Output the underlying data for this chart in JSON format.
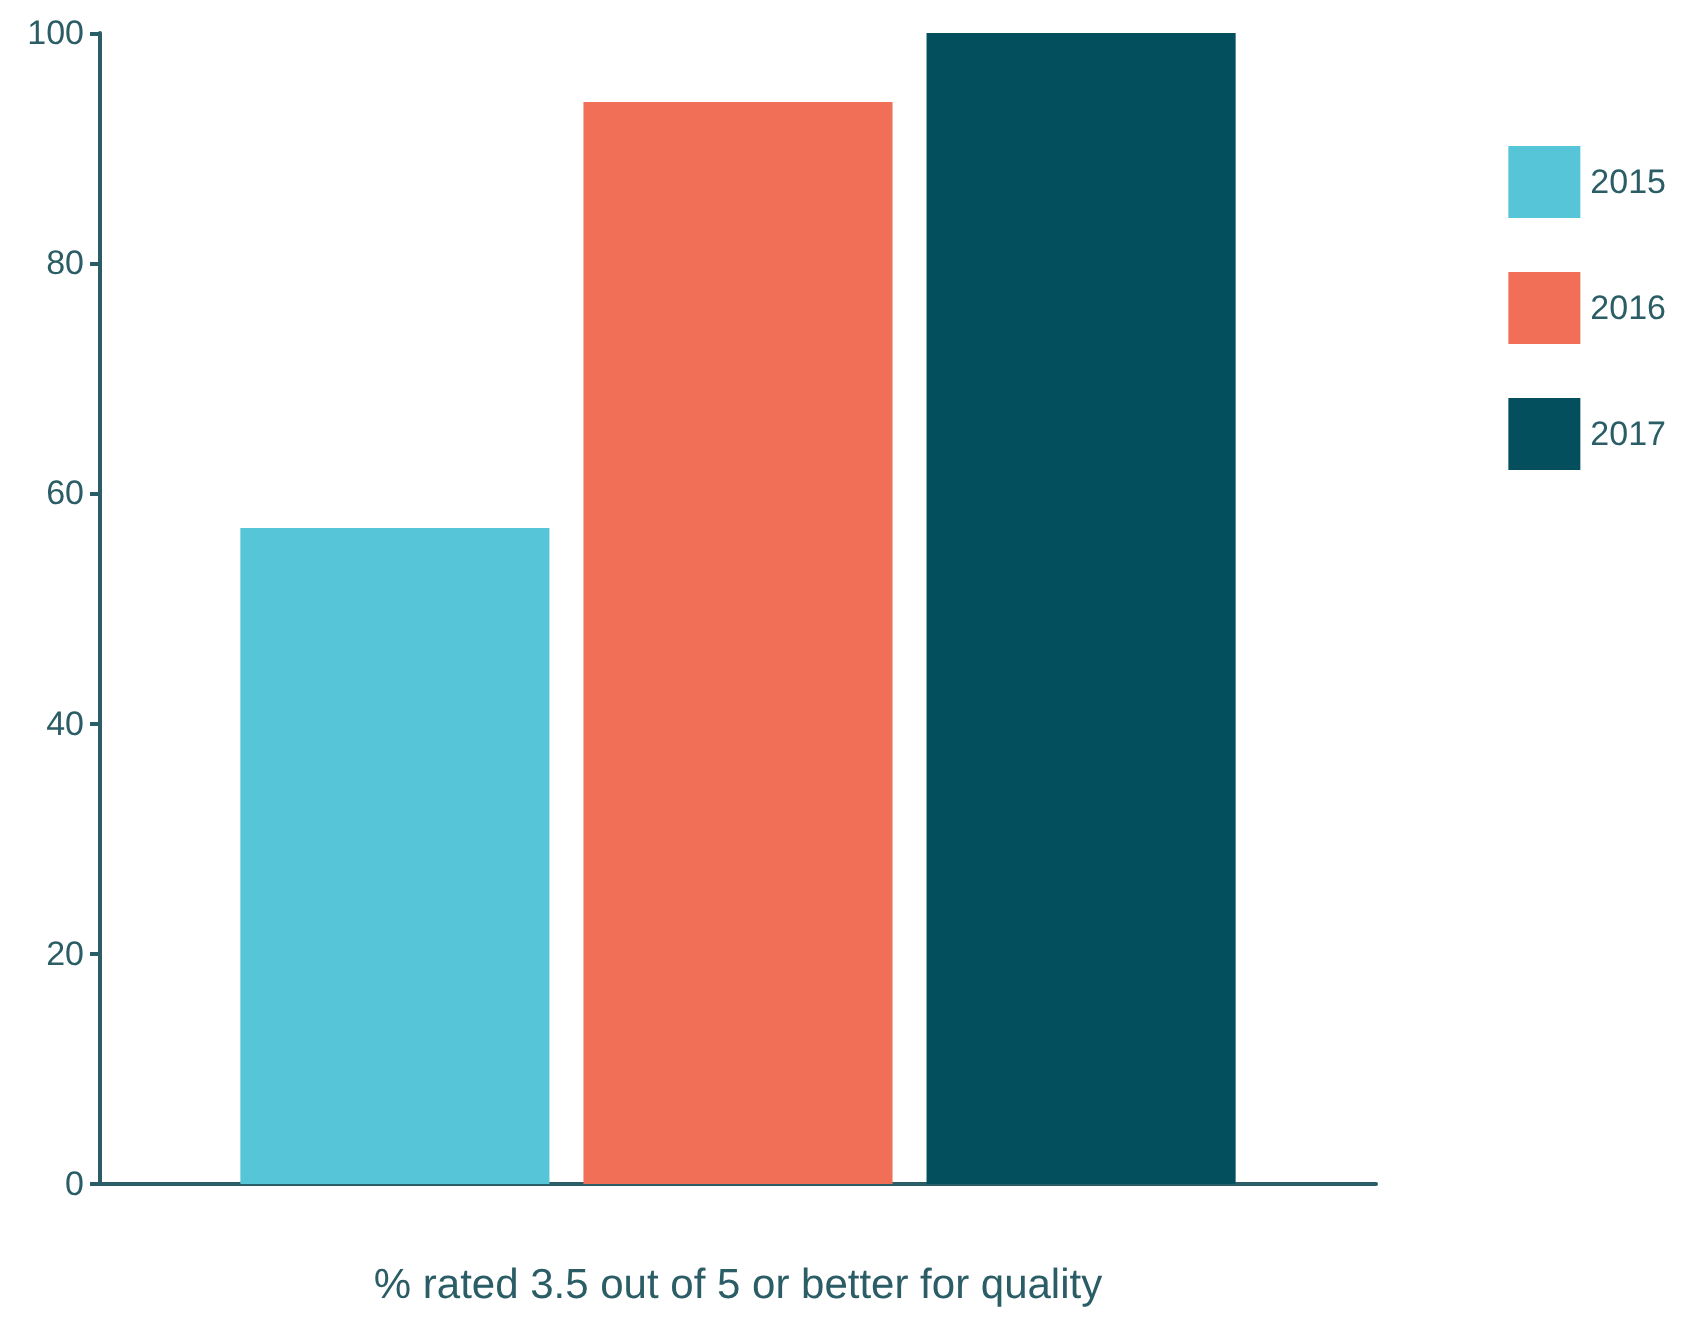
{
  "chart_data": {
    "type": "bar",
    "xlabel": "% rated 3.5 out of 5 or better for quality",
    "categories": [
      null
    ],
    "series": [
      {
        "name": "2015",
        "color": "#56c5d8",
        "values": [
          57
        ]
      },
      {
        "name": "2016",
        "color": "#f26f57",
        "values": [
          94
        ]
      },
      {
        "name": "2017",
        "color": "#034f5e",
        "values": [
          100
        ]
      }
    ],
    "ylim": [
      0,
      100
    ],
    "yticks": [
      0,
      20,
      40,
      60,
      80,
      100
    ],
    "grid": false,
    "legend": "right"
  }
}
